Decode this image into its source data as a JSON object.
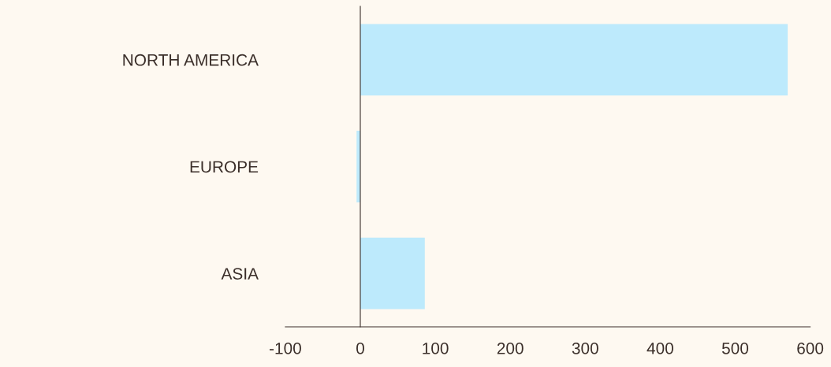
{
  "chart_data": {
    "type": "bar",
    "orientation": "horizontal",
    "categories": [
      "NORTH AMERICA",
      "EUROPE",
      "ASIA"
    ],
    "values": [
      570,
      -5,
      86
    ],
    "color": "#bdeafc",
    "xlim": [
      -100,
      600
    ],
    "xticks": [
      -100,
      0,
      100,
      200,
      300,
      400,
      500,
      600
    ]
  }
}
